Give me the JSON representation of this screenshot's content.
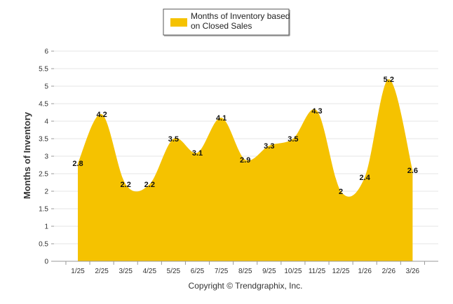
{
  "chart_data": {
    "type": "area",
    "title": "",
    "xlabel": "",
    "ylabel": "Months of Inventory",
    "ylim": [
      0,
      6
    ],
    "y_ticks": [
      "0",
      "0.5",
      "1",
      "1.5",
      "2",
      "2.5",
      "3",
      "3.5",
      "4",
      "4.5",
      "5",
      "5.5",
      "6"
    ],
    "categories": [
      "1/25",
      "2/25",
      "3/25",
      "4/25",
      "5/25",
      "6/25",
      "7/25",
      "8/25",
      "9/25",
      "10/25",
      "11/25",
      "12/25",
      "1/26",
      "2/26",
      "3/26"
    ],
    "series": [
      {
        "name": "Months of Inventory based on Closed Sales",
        "color": "#f5c200",
        "values": [
          2.8,
          4.2,
          2.2,
          2.2,
          3.5,
          3.1,
          4.1,
          2.9,
          3.3,
          3.5,
          4.3,
          2,
          2.4,
          5.2,
          2.6
        ],
        "labels": [
          "2.8",
          "4.2",
          "2.2",
          "2.2",
          "3.5",
          "3.1",
          "4.1",
          "2.9",
          "3.3",
          "3.5",
          "4.3",
          "2",
          "2.4",
          "5.2",
          "2.6"
        ]
      }
    ],
    "legend": {
      "position": "top-center",
      "line1": "Months of Inventory based",
      "line2": "on Closed Sales"
    },
    "grid": true
  },
  "footer": {
    "copyright": "Copyright © Trendgraphix, Inc."
  }
}
